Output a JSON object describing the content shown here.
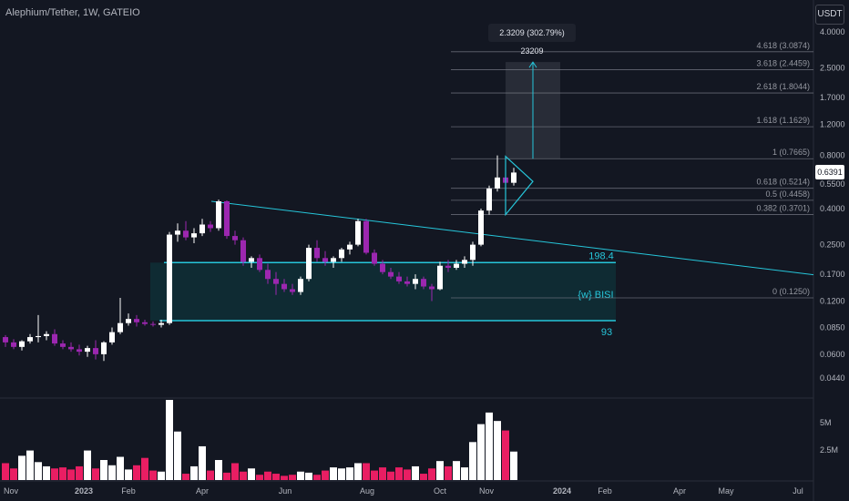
{
  "header": {
    "symbol_title": "Alephium/Tether, 1W, GATEIO",
    "currency_button": "USDT",
    "measure_label": "2.3209 (302.79%) 23209",
    "last_price": "0.6391"
  },
  "colors": {
    "background": "#131722",
    "up_candle": "#ffffff",
    "down_candle": "#9c27b0",
    "up_volume": "#ffffff",
    "down_volume": "#e91e63",
    "trendline": "#26c6da",
    "box_fill": "#0f2f36",
    "fib_line": "#787b86"
  },
  "chart_data": {
    "type": "candlestick",
    "scale": "log",
    "y_ticks": [
      "4.0000",
      "2.5000",
      "1.7000",
      "1.2000",
      "0.8000",
      "0.5500",
      "0.4000",
      "0.2500",
      "0.1700",
      "0.1200",
      "0.0850",
      "0.0600",
      "0.0440"
    ],
    "y_volume_ticks": [
      "5M",
      "2.5M"
    ],
    "x_ticks": [
      "Nov",
      "2023",
      "Feb",
      "Apr",
      "Jun",
      "Aug",
      "Oct",
      "Nov",
      "2024",
      "Feb",
      "Apr",
      "May",
      "Jul"
    ],
    "fib_levels": [
      {
        "label": "4.618 (3.0874)",
        "value": 3.0874
      },
      {
        "label": "3.618 (2.4459)",
        "value": 2.4459
      },
      {
        "label": "2.618 (1.8044)",
        "value": 1.8044
      },
      {
        "label": "1.618 (1.1629)",
        "value": 1.1629
      },
      {
        "label": "1 (0.7665)",
        "value": 0.7665
      },
      {
        "label": "0.618 (0.5214)",
        "value": 0.5214
      },
      {
        "label": "0.5 (0.4458)",
        "value": 0.4458
      },
      {
        "label": "0.382 (0.3701)",
        "value": 0.3701
      },
      {
        "label": "0 (0.1250)",
        "value": 0.125
      }
    ],
    "annotations": {
      "box_top": "198.4",
      "box_label": "{w} BISI",
      "box_bottom": "93"
    },
    "candles": [
      [
        0.075,
        0.077,
        0.066,
        0.07
      ],
      [
        0.07,
        0.073,
        0.064,
        0.066
      ],
      [
        0.066,
        0.072,
        0.063,
        0.071
      ],
      [
        0.071,
        0.078,
        0.069,
        0.075
      ],
      [
        0.075,
        0.1,
        0.07,
        0.076
      ],
      [
        0.076,
        0.081,
        0.072,
        0.078
      ],
      [
        0.078,
        0.083,
        0.067,
        0.069
      ],
      [
        0.069,
        0.072,
        0.064,
        0.066
      ],
      [
        0.066,
        0.07,
        0.062,
        0.064
      ],
      [
        0.064,
        0.068,
        0.059,
        0.062
      ],
      [
        0.062,
        0.067,
        0.058,
        0.065
      ],
      [
        0.065,
        0.072,
        0.056,
        0.06
      ],
      [
        0.06,
        0.071,
        0.055,
        0.07
      ],
      [
        0.07,
        0.085,
        0.068,
        0.08
      ],
      [
        0.08,
        0.125,
        0.078,
        0.09
      ],
      [
        0.09,
        0.102,
        0.087,
        0.095
      ],
      [
        0.095,
        0.1,
        0.086,
        0.091
      ],
      [
        0.091,
        0.094,
        0.087,
        0.089
      ],
      [
        0.089,
        0.092,
        0.086,
        0.088
      ],
      [
        0.088,
        0.094,
        0.085,
        0.09
      ],
      [
        0.09,
        0.295,
        0.088,
        0.285
      ],
      [
        0.285,
        0.33,
        0.26,
        0.3
      ],
      [
        0.3,
        0.34,
        0.265,
        0.275
      ],
      [
        0.275,
        0.31,
        0.255,
        0.29
      ],
      [
        0.29,
        0.35,
        0.28,
        0.325
      ],
      [
        0.325,
        0.34,
        0.295,
        0.31
      ],
      [
        0.31,
        0.45,
        0.3,
        0.44
      ],
      [
        0.44,
        0.445,
        0.27,
        0.28
      ],
      [
        0.28,
        0.3,
        0.25,
        0.265
      ],
      [
        0.265,
        0.275,
        0.19,
        0.2
      ],
      [
        0.2,
        0.215,
        0.185,
        0.21
      ],
      [
        0.21,
        0.22,
        0.175,
        0.18
      ],
      [
        0.18,
        0.195,
        0.15,
        0.16
      ],
      [
        0.16,
        0.175,
        0.13,
        0.15
      ],
      [
        0.15,
        0.16,
        0.135,
        0.14
      ],
      [
        0.14,
        0.15,
        0.13,
        0.135
      ],
      [
        0.135,
        0.165,
        0.13,
        0.16
      ],
      [
        0.16,
        0.25,
        0.155,
        0.24
      ],
      [
        0.24,
        0.265,
        0.2,
        0.21
      ],
      [
        0.21,
        0.23,
        0.19,
        0.2
      ],
      [
        0.2,
        0.215,
        0.185,
        0.21
      ],
      [
        0.21,
        0.24,
        0.2,
        0.235
      ],
      [
        0.235,
        0.26,
        0.22,
        0.25
      ],
      [
        0.25,
        0.35,
        0.245,
        0.34
      ],
      [
        0.34,
        0.35,
        0.22,
        0.225
      ],
      [
        0.225,
        0.235,
        0.19,
        0.195
      ],
      [
        0.195,
        0.205,
        0.17,
        0.175
      ],
      [
        0.175,
        0.185,
        0.16,
        0.165
      ],
      [
        0.165,
        0.175,
        0.15,
        0.155
      ],
      [
        0.155,
        0.165,
        0.145,
        0.15
      ],
      [
        0.15,
        0.17,
        0.14,
        0.16
      ],
      [
        0.16,
        0.165,
        0.14,
        0.145
      ],
      [
        0.145,
        0.15,
        0.12,
        0.14
      ],
      [
        0.14,
        0.2,
        0.138,
        0.19
      ],
      [
        0.19,
        0.205,
        0.175,
        0.185
      ],
      [
        0.185,
        0.205,
        0.18,
        0.195
      ],
      [
        0.195,
        0.215,
        0.185,
        0.205
      ],
      [
        0.205,
        0.26,
        0.19,
        0.25
      ],
      [
        0.25,
        0.4,
        0.245,
        0.39
      ],
      [
        0.39,
        0.54,
        0.37,
        0.52
      ],
      [
        0.52,
        0.8,
        0.5,
        0.6
      ],
      [
        0.6,
        0.72,
        0.52,
        0.56
      ],
      [
        0.56,
        0.68,
        0.54,
        0.64
      ]
    ],
    "volume": [
      1.6,
      1.1,
      2.3,
      2.8,
      1.7,
      1.3,
      1.1,
      1.2,
      1.0,
      1.3,
      2.8,
      1.1,
      1.9,
      1.4,
      2.2,
      1.0,
      1.4,
      2.1,
      0.9,
      0.8,
      7.6,
      4.6,
      0.6,
      1.3,
      3.2,
      0.9,
      1.9,
      0.7,
      1.6,
      0.8,
      1.1,
      0.5,
      0.8,
      0.6,
      0.4,
      0.5,
      0.8,
      0.7,
      0.5,
      0.9,
      1.2,
      1.1,
      1.2,
      1.6,
      1.6,
      0.9,
      1.2,
      0.8,
      1.2,
      1.0,
      1.3,
      0.6,
      1.1,
      1.8,
      1.3,
      1.8,
      1.2,
      3.6,
      5.3,
      6.4,
      5.6,
      4.7,
      2.7
    ]
  }
}
